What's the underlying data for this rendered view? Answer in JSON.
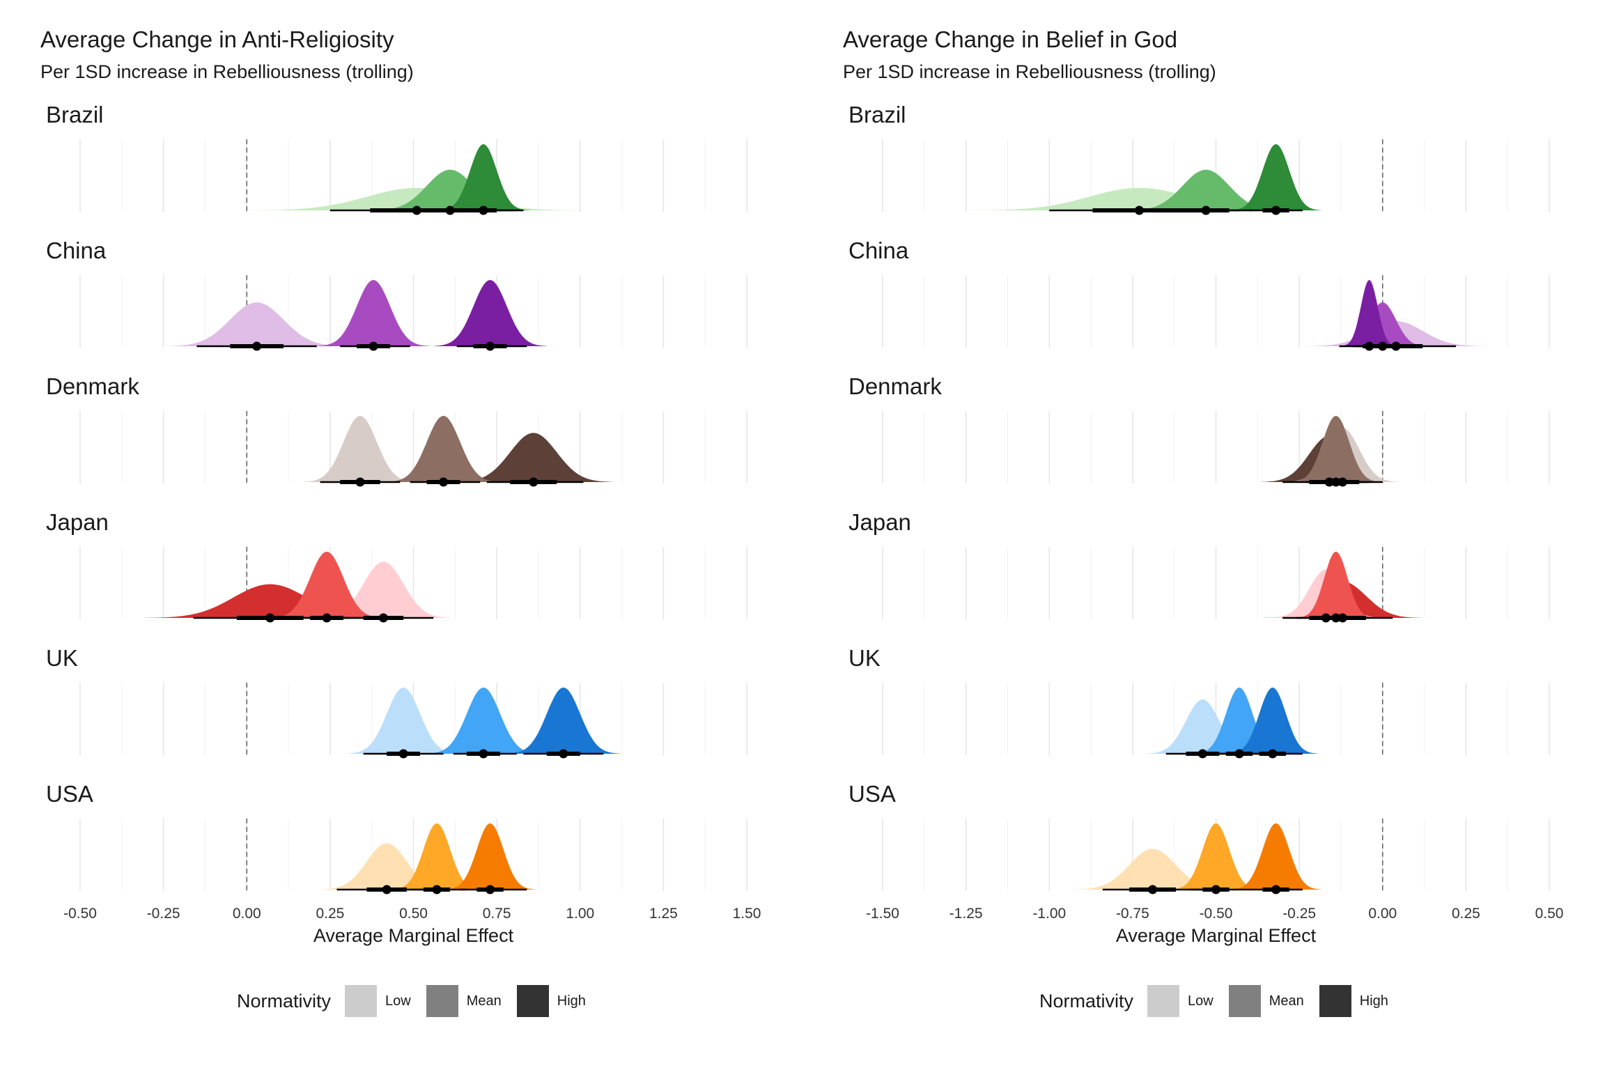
{
  "legend": {
    "title": "Normativity",
    "items": [
      {
        "label": "Low",
        "color": "#cccccc"
      },
      {
        "label": "Mean",
        "color": "#808080"
      },
      {
        "label": "High",
        "color": "#333333"
      }
    ]
  },
  "chart_data": [
    {
      "type": "density-ridgeline",
      "title": "Average Change in Anti-Religiosity",
      "subtitle": "Per 1SD increase in Rebelliousness (trolling)",
      "xlabel": "Average Marginal Effect",
      "xlim": [
        -0.5,
        1.5
      ],
      "xticks": [
        -0.5,
        -0.25,
        0,
        0.25,
        0.5,
        0.75,
        1.0,
        1.25,
        1.5
      ],
      "xtick_labels": [
        "-0.50",
        "-0.25",
        "0.00",
        "0.25",
        "0.50",
        "0.75",
        "1.00",
        "1.25",
        "1.50"
      ],
      "reference_line": 0,
      "levels": [
        "Low",
        "Mean",
        "High"
      ],
      "panels": [
        {
          "country": "Brazil",
          "colors": [
            "#c7e9c0",
            "#66bb6a",
            "#2e8b37"
          ],
          "median": [
            0.51,
            0.61,
            0.71
          ],
          "sd": [
            0.15,
            0.07,
            0.04
          ],
          "ci66": [
            [
              0.37,
              0.65
            ],
            [
              0.54,
              0.68
            ],
            [
              0.67,
              0.75
            ]
          ],
          "ci95": [
            [
              0.25,
              0.8
            ],
            [
              0.47,
              0.75
            ],
            [
              0.63,
              0.83
            ]
          ]
        },
        {
          "country": "China",
          "colors": [
            "#dfbde6",
            "#a94bc0",
            "#7b1fa2"
          ],
          "median": [
            0.03,
            0.38,
            0.73
          ],
          "sd": [
            0.08,
            0.05,
            0.05
          ],
          "ci66": [
            [
              -0.05,
              0.11
            ],
            [
              0.33,
              0.43
            ],
            [
              0.68,
              0.78
            ]
          ],
          "ci95": [
            [
              -0.15,
              0.21
            ],
            [
              0.28,
              0.49
            ],
            [
              0.63,
              0.84
            ]
          ]
        },
        {
          "country": "Denmark",
          "colors": [
            "#d7ccc8",
            "#8d6e63",
            "#5d4037"
          ],
          "median": [
            0.34,
            0.59,
            0.86
          ],
          "sd": [
            0.05,
            0.05,
            0.07
          ],
          "ci66": [
            [
              0.28,
              0.4
            ],
            [
              0.54,
              0.64
            ],
            [
              0.79,
              0.93
            ]
          ],
          "ci95": [
            [
              0.22,
              0.46
            ],
            [
              0.49,
              0.7
            ],
            [
              0.72,
              1.01
            ]
          ]
        },
        {
          "country": "Japan",
          "colors": [
            "#d32f2f",
            "#ef5350",
            "#ffcdd2"
          ],
          "median": [
            0.07,
            0.24,
            0.41
          ],
          "sd": [
            0.11,
            0.05,
            0.06
          ],
          "ci66": [
            [
              -0.03,
              0.17
            ],
            [
              0.19,
              0.29
            ],
            [
              0.35,
              0.47
            ]
          ],
          "ci95": [
            [
              -0.16,
              0.31
            ],
            [
              0.14,
              0.35
            ],
            [
              0.29,
              0.56
            ]
          ]
        },
        {
          "country": "UK",
          "colors": [
            "#bbdefb",
            "#42a5f5",
            "#1976d2"
          ],
          "median": [
            0.47,
            0.71,
            0.95
          ],
          "sd": [
            0.05,
            0.05,
            0.05
          ],
          "ci66": [
            [
              0.42,
              0.52
            ],
            [
              0.66,
              0.76
            ],
            [
              0.9,
              1.0
            ]
          ],
          "ci95": [
            [
              0.35,
              0.59
            ],
            [
              0.62,
              0.81
            ],
            [
              0.83,
              1.07
            ]
          ]
        },
        {
          "country": "USA",
          "colors": [
            "#ffe0b2",
            "#ffa726",
            "#f57c00"
          ],
          "median": [
            0.42,
            0.57,
            0.73
          ],
          "sd": [
            0.06,
            0.04,
            0.04
          ],
          "ci66": [
            [
              0.36,
              0.48
            ],
            [
              0.53,
              0.61
            ],
            [
              0.69,
              0.77
            ]
          ],
          "ci95": [
            [
              0.27,
              0.59
            ],
            [
              0.49,
              0.66
            ],
            [
              0.64,
              0.84
            ]
          ]
        }
      ]
    },
    {
      "type": "density-ridgeline",
      "title": "Average Change in Belief in God",
      "subtitle": "Per 1SD increase in Rebelliousness (trolling)",
      "xlabel": "Average Marginal Effect",
      "xlim": [
        -1.5,
        0.5
      ],
      "xticks": [
        -1.5,
        -1.25,
        -1.0,
        -0.75,
        -0.5,
        -0.25,
        0,
        0.25,
        0.5
      ],
      "xtick_labels": [
        "-1.50",
        "-1.25",
        "-1.00",
        "-0.75",
        "-0.50",
        "-0.25",
        "0.00",
        "0.25",
        "0.50"
      ],
      "reference_line": 0,
      "levels": [
        "Low",
        "Mean",
        "High"
      ],
      "panels": [
        {
          "country": "Brazil",
          "colors": [
            "#c7e9c0",
            "#66bb6a",
            "#2e8b37"
          ],
          "median": [
            -0.73,
            -0.53,
            -0.32
          ],
          "sd": [
            0.15,
            0.07,
            0.04
          ],
          "ci66": [
            [
              -0.87,
              -0.59
            ],
            [
              -0.6,
              -0.46
            ],
            [
              -0.36,
              -0.28
            ]
          ],
          "ci95": [
            [
              -1.0,
              -0.43
            ],
            [
              -0.67,
              -0.39
            ],
            [
              -0.4,
              -0.24
            ]
          ]
        },
        {
          "country": "China",
          "colors": [
            "#dfbde6",
            "#a94bc0",
            "#7b1fa2"
          ],
          "median": [
            0.04,
            0.0,
            -0.04
          ],
          "sd": [
            0.08,
            0.04,
            0.025
          ],
          "ci66": [
            [
              -0.04,
              0.12
            ],
            [
              -0.04,
              0.04
            ],
            [
              -0.06,
              -0.02
            ]
          ],
          "ci95": [
            [
              -0.13,
              0.22
            ],
            [
              -0.08,
              0.08
            ],
            [
              -0.09,
              0.01
            ]
          ]
        },
        {
          "country": "Denmark",
          "colors": [
            "#d7ccc8",
            "#8d6e63",
            "#5d4037"
          ],
          "median": [
            -0.12,
            -0.14,
            -0.16
          ],
          "sd": [
            0.05,
            0.04,
            0.06
          ],
          "ci66": [
            [
              -0.17,
              -0.07
            ],
            [
              -0.18,
              -0.1
            ],
            [
              -0.22,
              -0.1
            ]
          ],
          "ci95": [
            [
              -0.23,
              0.0
            ],
            [
              -0.22,
              -0.06
            ],
            [
              -0.3,
              -0.04
            ]
          ]
        },
        {
          "country": "Japan",
          "colors": [
            "#d32f2f",
            "#ef5350",
            "#ffcdd2"
          ],
          "median": [
            -0.12,
            -0.14,
            -0.17
          ],
          "sd": [
            0.07,
            0.035,
            0.05
          ],
          "ci66": [
            [
              -0.19,
              -0.05
            ],
            [
              -0.17,
              -0.11
            ],
            [
              -0.22,
              -0.12
            ]
          ],
          "ci95": [
            [
              -0.26,
              0.03
            ],
            [
              -0.2,
              -0.07
            ],
            [
              -0.3,
              -0.06
            ]
          ]
        },
        {
          "country": "UK",
          "colors": [
            "#bbdefb",
            "#42a5f5",
            "#1976d2"
          ],
          "median": [
            -0.54,
            -0.43,
            -0.33
          ],
          "sd": [
            0.05,
            0.04,
            0.04
          ],
          "ci66": [
            [
              -0.59,
              -0.49
            ],
            [
              -0.47,
              -0.39
            ],
            [
              -0.37,
              -0.29
            ]
          ],
          "ci95": [
            [
              -0.65,
              -0.43
            ],
            [
              -0.52,
              -0.34
            ],
            [
              -0.42,
              -0.24
            ]
          ]
        },
        {
          "country": "USA",
          "colors": [
            "#ffe0b2",
            "#ffa726",
            "#f57c00"
          ],
          "median": [
            -0.69,
            -0.5,
            -0.32
          ],
          "sd": [
            0.07,
            0.04,
            0.04
          ],
          "ci66": [
            [
              -0.76,
              -0.62
            ],
            [
              -0.54,
              -0.46
            ],
            [
              -0.36,
              -0.28
            ]
          ],
          "ci95": [
            [
              -0.84,
              -0.53
            ],
            [
              -0.58,
              -0.41
            ],
            [
              -0.41,
              -0.24
            ]
          ]
        }
      ]
    }
  ]
}
